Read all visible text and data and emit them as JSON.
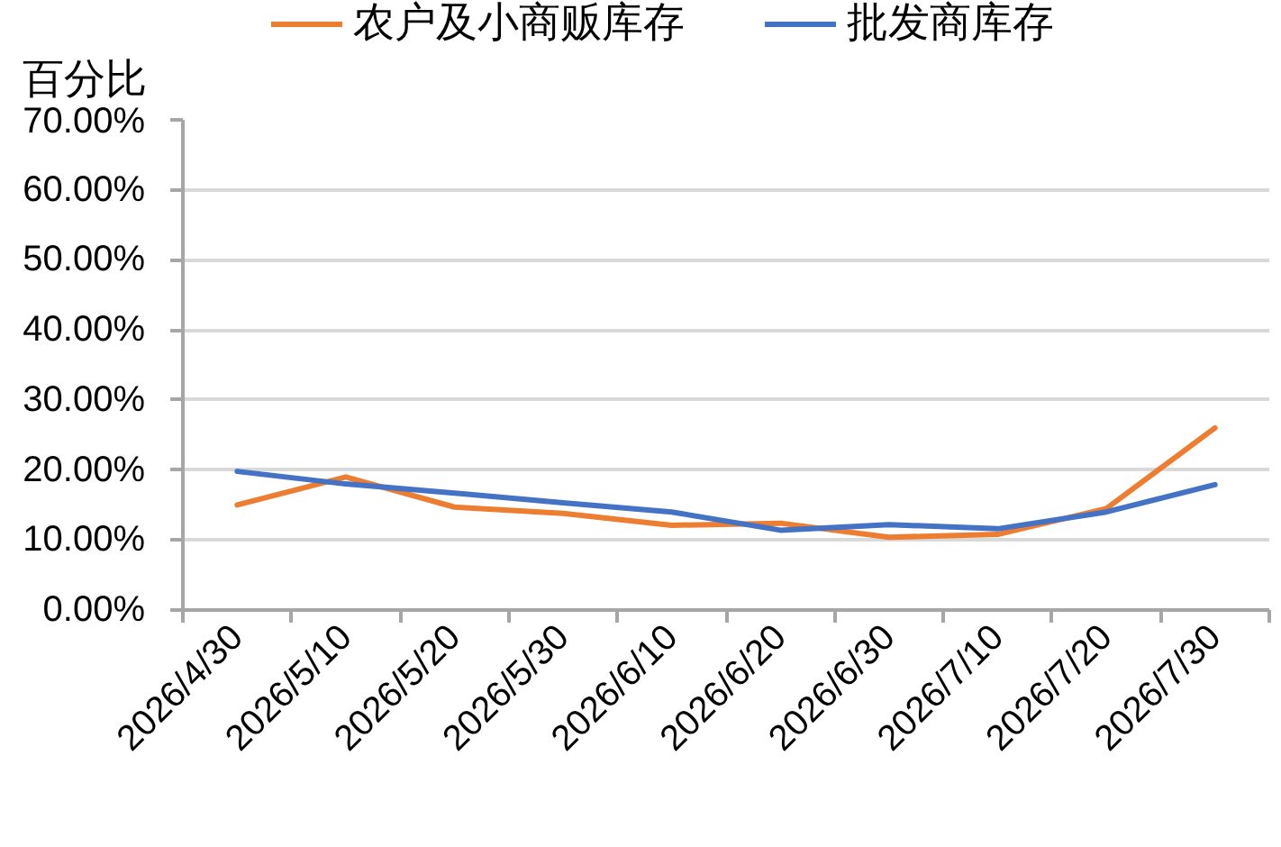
{
  "chart_data": {
    "type": "line",
    "ylabel": "百分比",
    "categories": [
      "2026/4/30",
      "2026/5/10",
      "2026/5/20",
      "2026/5/30",
      "2026/6/10",
      "2026/6/20",
      "2026/6/30",
      "2026/7/10",
      "2026/7/20",
      "2026/7/30"
    ],
    "series": [
      {
        "name": "农户及小商贩库存",
        "color": "#ed7d31",
        "values": [
          15.0,
          19.0,
          14.7,
          13.8,
          12.1,
          12.4,
          10.4,
          10.8,
          14.5,
          26.0
        ]
      },
      {
        "name": "批发商库存",
        "color": "#4472c4",
        "values": [
          19.8,
          18.0,
          16.7,
          15.3,
          14.0,
          11.4,
          12.2,
          11.6,
          14.0,
          17.9
        ]
      }
    ],
    "ylim": [
      0,
      70
    ],
    "yticks": [
      {
        "value": 0,
        "label": "0.00%"
      },
      {
        "value": 10,
        "label": "10.00%"
      },
      {
        "value": 20,
        "label": "20.00%"
      },
      {
        "value": 30,
        "label": "30.00%"
      },
      {
        "value": 40,
        "label": "40.00%"
      },
      {
        "value": 50,
        "label": "50.00%"
      },
      {
        "value": 60,
        "label": "60.00%"
      },
      {
        "value": 70,
        "label": "70.00%"
      }
    ],
    "grid": "y",
    "legend": "top",
    "line_style": "solid"
  }
}
